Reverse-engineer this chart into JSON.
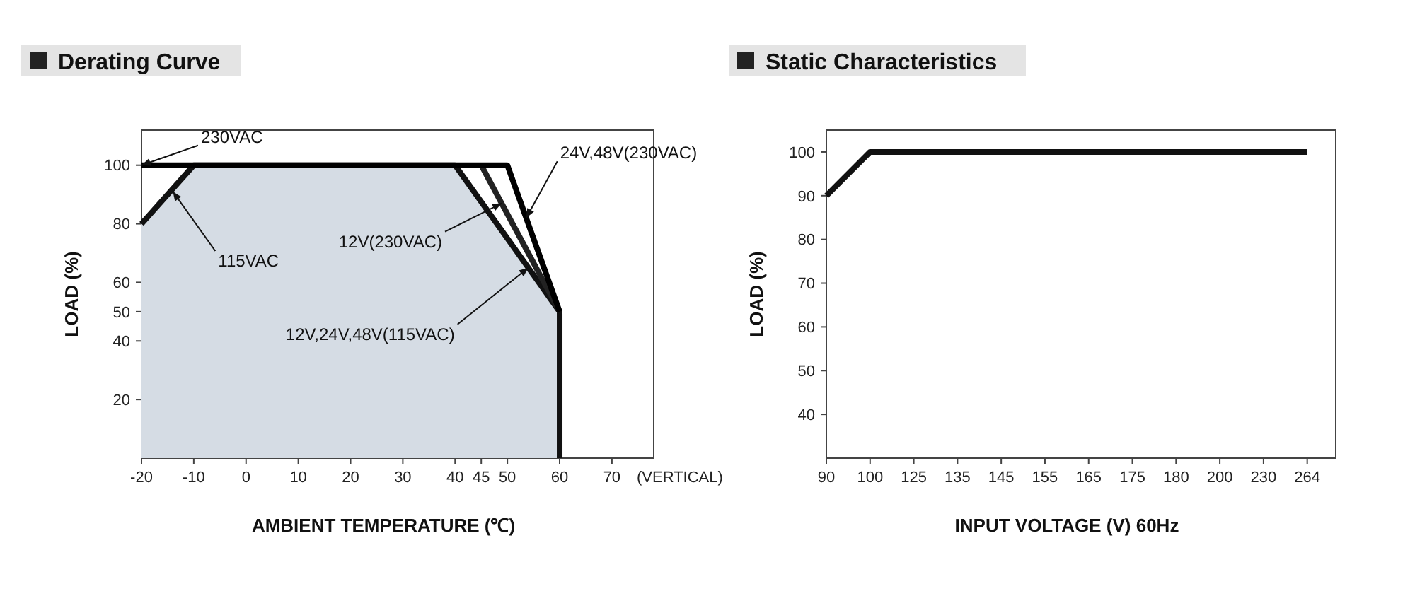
{
  "chart_data": [
    {
      "type": "line",
      "title": "Derating Curve",
      "xlabel": "AMBIENT TEMPERATURE (℃)",
      "ylabel": "LOAD (%)",
      "xlim": [
        -20,
        78
      ],
      "xticks": [
        -20,
        -10,
        0,
        10,
        20,
        30,
        40,
        45,
        50,
        60,
        70
      ],
      "ylim": [
        0,
        112
      ],
      "yticks": [
        20,
        40,
        50,
        60,
        80,
        100
      ],
      "series": [
        {
          "type": "area",
          "color": "#d5dce4",
          "x": [
            -20,
            -10,
            40,
            60,
            60
          ],
          "values": [
            80,
            100,
            100,
            50,
            0
          ]
        },
        {
          "color": "#222222",
          "x": [
            45,
            60
          ],
          "values": [
            100,
            50
          ]
        },
        {
          "color": "#000000",
          "x": [
            -20,
            50,
            60
          ],
          "values": [
            100,
            100,
            50
          ]
        }
      ],
      "annotations": [
        {
          "text": "230VAC",
          "x": -20,
          "y": 100
        },
        {
          "text": "115VAC",
          "x": -14,
          "y": 91
        },
        {
          "text": "24V,48V(230VAC)",
          "x": 53.6,
          "y": 82
        },
        {
          "text": "12V(230VAC)",
          "x": 48.9,
          "y": 87
        },
        {
          "text": "12V,24V,48V(115VAC)",
          "x": 54,
          "y": 65
        },
        "(VERTICAL)"
      ]
    },
    {
      "type": "line",
      "title": "Static Characteristics",
      "xlabel": "INPUT VOLTAGE (V) 60Hz",
      "ylabel": "LOAD (%)",
      "ylim": [
        30,
        105
      ],
      "yticks": [
        40,
        50,
        60,
        70,
        80,
        90,
        100
      ],
      "categories": [
        "90",
        "100",
        "125",
        "135",
        "145",
        "155",
        "165",
        "175",
        "180",
        "200",
        "230",
        "264"
      ],
      "series": [
        {
          "color": "#111111",
          "values": [
            90,
            100,
            100,
            100,
            100,
            100,
            100,
            100,
            100,
            100,
            100,
            100
          ]
        }
      ]
    }
  ]
}
